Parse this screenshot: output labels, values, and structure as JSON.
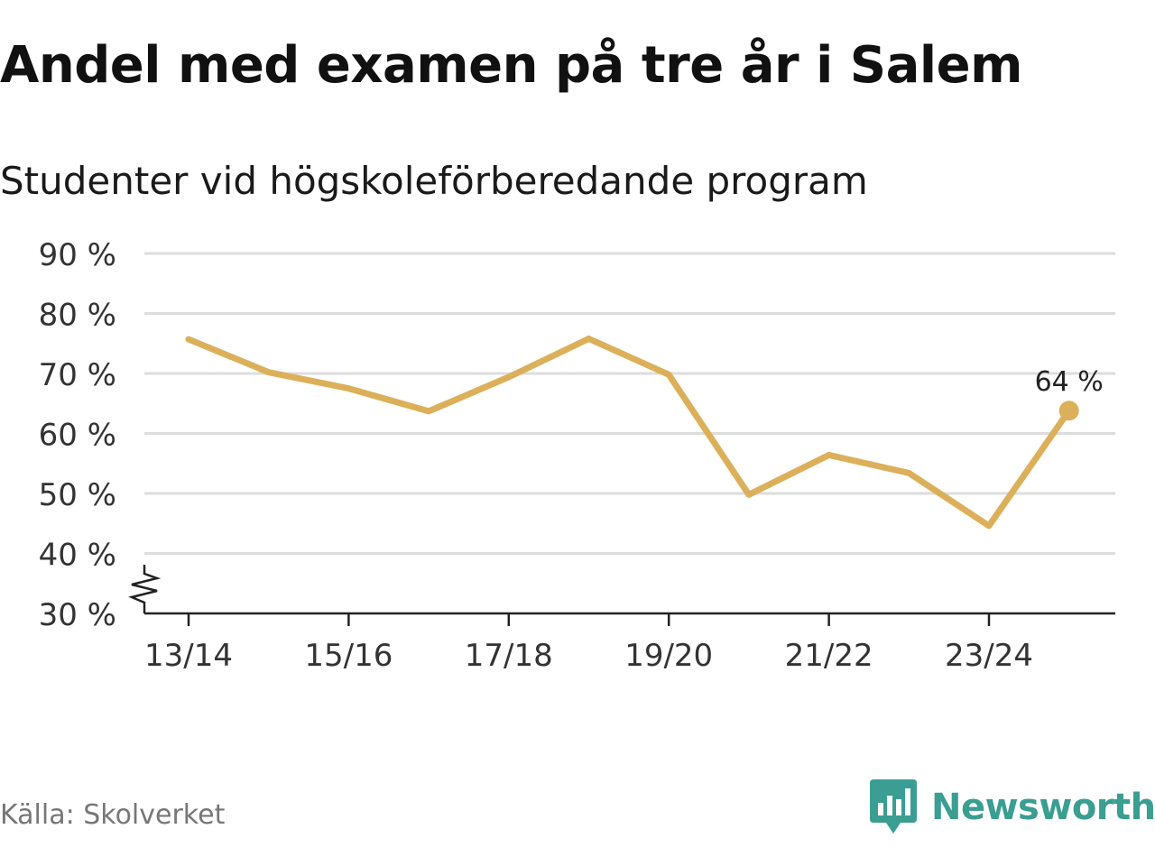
{
  "header": {
    "title": "Andel med examen på tre år i Salem",
    "subtitle": "Studenter vid högskoleförberedande program"
  },
  "footer": {
    "source": "Källa: Skolverket",
    "brand": "Newsworthy",
    "brand_icon": "bar-chart-speech-bubble-icon"
  },
  "colors": {
    "line": "#dcb05a",
    "grid": "#dddddd",
    "axis": "#222222",
    "text": "#333333",
    "brand": "#3a9e92"
  },
  "chart_data": {
    "type": "line",
    "title": "Andel med examen på tre år i Salem",
    "subtitle": "Studenter vid högskoleförberedande program",
    "xlabel": "",
    "ylabel": "",
    "categories": [
      "13/14",
      "14/15",
      "15/16",
      "16/17",
      "17/18",
      "18/19",
      "19/20",
      "20/21",
      "21/22",
      "22/23",
      "23/24",
      "24/25"
    ],
    "series": [
      {
        "name": "Andel med examen",
        "values": [
          75.7,
          70.2,
          67.5,
          63.7,
          69.4,
          75.8,
          69.8,
          49.8,
          56.4,
          53.4,
          44.6,
          63.8
        ]
      }
    ],
    "x_tick_labels": [
      "13/14",
      "15/16",
      "17/18",
      "19/20",
      "21/22",
      "23/24"
    ],
    "y_ticks": [
      30,
      40,
      50,
      60,
      70,
      80,
      90
    ],
    "y_tick_labels": [
      "30 %",
      "40 %",
      "50 %",
      "60 %",
      "70 %",
      "80 %",
      "90 %"
    ],
    "ylim": [
      30,
      90
    ],
    "axis_break": true,
    "grid": true,
    "end_label": "64 %"
  }
}
